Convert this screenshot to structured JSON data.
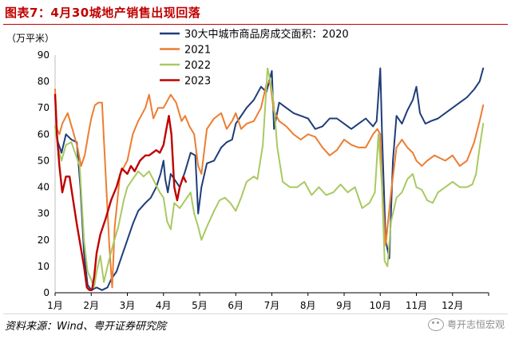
{
  "figure": {
    "title": "图表7：4月30城地产销售出现回落",
    "unit": "（万平米）",
    "source": "资料来源：Wind、粤开证券研究院",
    "watermark": "粤开志恒宏观"
  },
  "chart_data": {
    "type": "line",
    "ylim": [
      0,
      90
    ],
    "yticks": [
      0,
      10,
      20,
      30,
      40,
      50,
      60,
      70,
      80,
      90
    ],
    "xlim": [
      1,
      13
    ],
    "xticks": [
      {
        "label": "1月",
        "x": 1
      },
      {
        "label": "2月",
        "x": 2
      },
      {
        "label": "3月",
        "x": 3
      },
      {
        "label": "4月",
        "x": 4
      },
      {
        "label": "5月",
        "x": 5
      },
      {
        "label": "6月",
        "x": 6
      },
      {
        "label": "7月",
        "x": 7
      },
      {
        "label": "8月",
        "x": 8
      },
      {
        "label": "9月",
        "x": 9
      },
      {
        "label": "10月",
        "x": 10
      },
      {
        "label": "11月",
        "x": 11
      },
      {
        "label": "12月",
        "x": 12
      }
    ],
    "legend_position": "top-center",
    "series": [
      {
        "name": "30大中城市商品房成交面积：2020",
        "color": "#1f3d7a",
        "points": [
          [
            1.0,
            63
          ],
          [
            1.08,
            57
          ],
          [
            1.18,
            53
          ],
          [
            1.3,
            60
          ],
          [
            1.45,
            58
          ],
          [
            1.6,
            57
          ],
          [
            1.7,
            40
          ],
          [
            1.8,
            15
          ],
          [
            1.9,
            3
          ],
          [
            2.0,
            1
          ],
          [
            2.15,
            2
          ],
          [
            2.3,
            1
          ],
          [
            2.45,
            2
          ],
          [
            2.55,
            5
          ],
          [
            2.7,
            8
          ],
          [
            2.85,
            14
          ],
          [
            3.0,
            20
          ],
          [
            3.15,
            26
          ],
          [
            3.3,
            31
          ],
          [
            3.5,
            34
          ],
          [
            3.65,
            36
          ],
          [
            3.8,
            40
          ],
          [
            3.92,
            45
          ],
          [
            4.0,
            50
          ],
          [
            4.05,
            43
          ],
          [
            4.12,
            38
          ],
          [
            4.2,
            45
          ],
          [
            4.3,
            43
          ],
          [
            4.45,
            40
          ],
          [
            4.6,
            46
          ],
          [
            4.75,
            53
          ],
          [
            4.88,
            52
          ],
          [
            4.96,
            30
          ],
          [
            5.05,
            40
          ],
          [
            5.2,
            49
          ],
          [
            5.4,
            50
          ],
          [
            5.6,
            55
          ],
          [
            5.75,
            57
          ],
          [
            5.9,
            58
          ],
          [
            6.0,
            64
          ],
          [
            6.1,
            66
          ],
          [
            6.3,
            70
          ],
          [
            6.5,
            73
          ],
          [
            6.7,
            78
          ],
          [
            6.85,
            76
          ],
          [
            7.0,
            84
          ],
          [
            7.06,
            62
          ],
          [
            7.2,
            72
          ],
          [
            7.4,
            70
          ],
          [
            7.6,
            68
          ],
          [
            7.8,
            67
          ],
          [
            8.0,
            66
          ],
          [
            8.2,
            62
          ],
          [
            8.4,
            63
          ],
          [
            8.6,
            66
          ],
          [
            8.8,
            66
          ],
          [
            9.0,
            64
          ],
          [
            9.2,
            62
          ],
          [
            9.4,
            64
          ],
          [
            9.6,
            66
          ],
          [
            9.8,
            63
          ],
          [
            9.9,
            65
          ],
          [
            10.0,
            85
          ],
          [
            10.05,
            60
          ],
          [
            10.15,
            20
          ],
          [
            10.25,
            13
          ],
          [
            10.35,
            50
          ],
          [
            10.45,
            67
          ],
          [
            10.6,
            64
          ],
          [
            10.75,
            69
          ],
          [
            10.9,
            73
          ],
          [
            11.0,
            78
          ],
          [
            11.1,
            68
          ],
          [
            11.25,
            64
          ],
          [
            11.4,
            65
          ],
          [
            11.6,
            66
          ],
          [
            11.8,
            68
          ],
          [
            12.0,
            70
          ],
          [
            12.2,
            72
          ],
          [
            12.4,
            74
          ],
          [
            12.6,
            77
          ],
          [
            12.75,
            80
          ],
          [
            12.85,
            85
          ]
        ]
      },
      {
        "name": "2021",
        "color": "#ed7d31",
        "points": [
          [
            1.0,
            77
          ],
          [
            1.05,
            62
          ],
          [
            1.12,
            60
          ],
          [
            1.2,
            64
          ],
          [
            1.35,
            68
          ],
          [
            1.5,
            61
          ],
          [
            1.62,
            55
          ],
          [
            1.72,
            48
          ],
          [
            1.82,
            52
          ],
          [
            1.92,
            60
          ],
          [
            2.0,
            66
          ],
          [
            2.1,
            71
          ],
          [
            2.2,
            72
          ],
          [
            2.3,
            72
          ],
          [
            2.4,
            45
          ],
          [
            2.5,
            18
          ],
          [
            2.58,
            2
          ],
          [
            2.65,
            25
          ],
          [
            2.8,
            45
          ],
          [
            3.0,
            50
          ],
          [
            3.15,
            60
          ],
          [
            3.3,
            65
          ],
          [
            3.5,
            70
          ],
          [
            3.6,
            75
          ],
          [
            3.72,
            66
          ],
          [
            3.85,
            70
          ],
          [
            4.0,
            70
          ],
          [
            4.2,
            75
          ],
          [
            4.35,
            72
          ],
          [
            4.5,
            65
          ],
          [
            4.6,
            67
          ],
          [
            4.72,
            63
          ],
          [
            4.85,
            60
          ],
          [
            4.96,
            48
          ],
          [
            5.05,
            45
          ],
          [
            5.2,
            62
          ],
          [
            5.4,
            66
          ],
          [
            5.6,
            68
          ],
          [
            5.75,
            62
          ],
          [
            5.9,
            65
          ],
          [
            6.0,
            68
          ],
          [
            6.15,
            62
          ],
          [
            6.3,
            64
          ],
          [
            6.5,
            65
          ],
          [
            6.7,
            70
          ],
          [
            6.85,
            79
          ],
          [
            6.95,
            80
          ],
          [
            7.05,
            69
          ],
          [
            7.2,
            65
          ],
          [
            7.4,
            63
          ],
          [
            7.6,
            60
          ],
          [
            7.8,
            58
          ],
          [
            8.0,
            60
          ],
          [
            8.2,
            59
          ],
          [
            8.4,
            55
          ],
          [
            8.6,
            52
          ],
          [
            8.8,
            54
          ],
          [
            9.0,
            58
          ],
          [
            9.2,
            56
          ],
          [
            9.4,
            55
          ],
          [
            9.6,
            55
          ],
          [
            9.8,
            60
          ],
          [
            9.92,
            62
          ],
          [
            10.0,
            60
          ],
          [
            10.05,
            40
          ],
          [
            10.15,
            18
          ],
          [
            10.3,
            38
          ],
          [
            10.45,
            55
          ],
          [
            10.6,
            58
          ],
          [
            10.75,
            55
          ],
          [
            10.9,
            53
          ],
          [
            11.0,
            50
          ],
          [
            11.15,
            48
          ],
          [
            11.3,
            50
          ],
          [
            11.5,
            52
          ],
          [
            11.65,
            51
          ],
          [
            11.8,
            50
          ],
          [
            12.0,
            52
          ],
          [
            12.2,
            48
          ],
          [
            12.4,
            50
          ],
          [
            12.6,
            57
          ],
          [
            12.75,
            65
          ],
          [
            12.85,
            71
          ]
        ]
      },
      {
        "name": "2022",
        "color": "#a9c961",
        "points": [
          [
            1.0,
            63
          ],
          [
            1.08,
            55
          ],
          [
            1.18,
            50
          ],
          [
            1.3,
            56
          ],
          [
            1.45,
            57
          ],
          [
            1.58,
            52
          ],
          [
            1.68,
            48
          ],
          [
            1.8,
            20
          ],
          [
            1.9,
            8
          ],
          [
            2.0,
            5
          ],
          [
            2.08,
            2
          ],
          [
            2.15,
            8
          ],
          [
            2.25,
            14
          ],
          [
            2.35,
            4
          ],
          [
            2.45,
            10
          ],
          [
            2.6,
            18
          ],
          [
            2.75,
            25
          ],
          [
            2.9,
            35
          ],
          [
            3.0,
            40
          ],
          [
            3.15,
            43
          ],
          [
            3.3,
            46
          ],
          [
            3.45,
            44
          ],
          [
            3.6,
            46
          ],
          [
            3.75,
            42
          ],
          [
            3.9,
            38
          ],
          [
            4.0,
            36
          ],
          [
            4.1,
            27
          ],
          [
            4.2,
            24
          ],
          [
            4.3,
            34
          ],
          [
            4.45,
            32
          ],
          [
            4.6,
            35
          ],
          [
            4.75,
            38
          ],
          [
            4.85,
            30
          ],
          [
            4.96,
            25
          ],
          [
            5.05,
            20
          ],
          [
            5.2,
            25
          ],
          [
            5.4,
            31
          ],
          [
            5.55,
            35
          ],
          [
            5.7,
            36
          ],
          [
            5.85,
            34
          ],
          [
            6.0,
            31
          ],
          [
            6.15,
            36
          ],
          [
            6.3,
            42
          ],
          [
            6.5,
            44
          ],
          [
            6.6,
            43
          ],
          [
            6.75,
            56
          ],
          [
            6.88,
            85
          ],
          [
            6.96,
            80
          ],
          [
            7.05,
            72
          ],
          [
            7.15,
            55
          ],
          [
            7.3,
            42
          ],
          [
            7.5,
            40
          ],
          [
            7.7,
            40
          ],
          [
            7.9,
            42
          ],
          [
            8.1,
            37
          ],
          [
            8.3,
            40
          ],
          [
            8.5,
            37
          ],
          [
            8.7,
            38
          ],
          [
            8.9,
            41
          ],
          [
            9.1,
            38
          ],
          [
            9.3,
            40
          ],
          [
            9.5,
            32
          ],
          [
            9.7,
            34
          ],
          [
            9.85,
            38
          ],
          [
            9.95,
            60
          ],
          [
            10.05,
            40
          ],
          [
            10.12,
            12
          ],
          [
            10.2,
            10
          ],
          [
            10.3,
            27
          ],
          [
            10.45,
            36
          ],
          [
            10.6,
            38
          ],
          [
            10.75,
            43
          ],
          [
            10.9,
            45
          ],
          [
            11.0,
            40
          ],
          [
            11.15,
            39
          ],
          [
            11.3,
            35
          ],
          [
            11.45,
            34
          ],
          [
            11.6,
            38
          ],
          [
            11.8,
            40
          ],
          [
            12.0,
            42
          ],
          [
            12.2,
            40
          ],
          [
            12.4,
            40
          ],
          [
            12.55,
            41
          ],
          [
            12.65,
            45
          ],
          [
            12.75,
            55
          ],
          [
            12.85,
            64
          ]
        ]
      },
      {
        "name": "2023",
        "color": "#c00000",
        "points": [
          [
            1.0,
            75
          ],
          [
            1.05,
            60
          ],
          [
            1.12,
            48
          ],
          [
            1.2,
            38
          ],
          [
            1.3,
            44
          ],
          [
            1.4,
            44
          ],
          [
            1.5,
            35
          ],
          [
            1.6,
            26
          ],
          [
            1.7,
            18
          ],
          [
            1.8,
            10
          ],
          [
            1.88,
            2
          ],
          [
            1.95,
            1
          ],
          [
            2.02,
            1
          ],
          [
            2.08,
            6
          ],
          [
            2.15,
            15
          ],
          [
            2.25,
            22
          ],
          [
            2.4,
            28
          ],
          [
            2.55,
            35
          ],
          [
            2.7,
            40
          ],
          [
            2.85,
            47
          ],
          [
            3.0,
            45
          ],
          [
            3.1,
            48
          ],
          [
            3.2,
            46
          ],
          [
            3.35,
            50
          ],
          [
            3.5,
            52
          ],
          [
            3.6,
            52
          ],
          [
            3.7,
            53
          ],
          [
            3.8,
            54
          ],
          [
            3.9,
            53
          ],
          [
            4.0,
            56
          ],
          [
            4.08,
            62
          ],
          [
            4.15,
            67
          ],
          [
            4.22,
            60
          ],
          [
            4.3,
            40
          ],
          [
            4.38,
            35
          ],
          [
            4.45,
            40
          ],
          [
            4.55,
            44
          ],
          [
            4.62,
            42
          ]
        ]
      }
    ]
  }
}
